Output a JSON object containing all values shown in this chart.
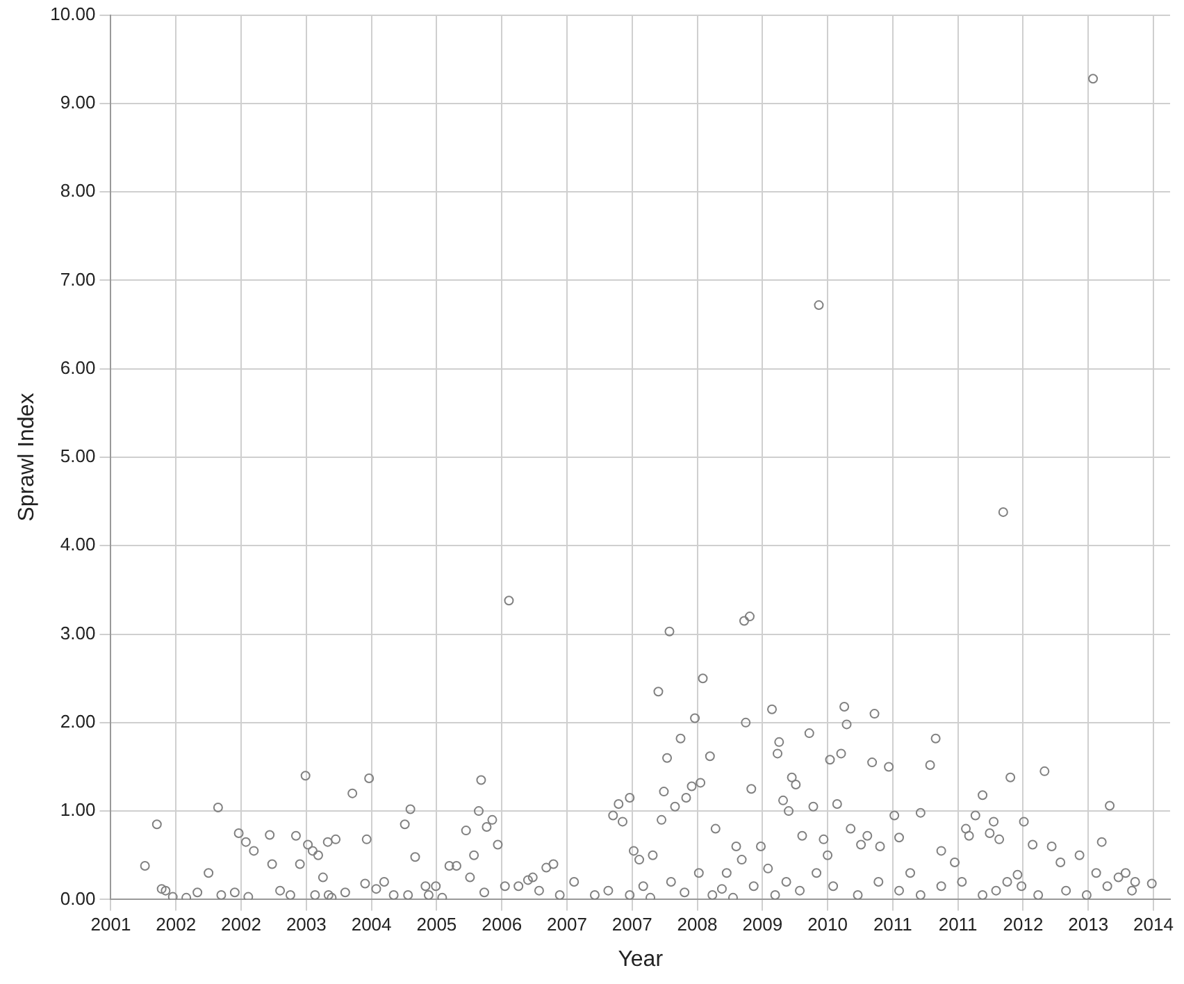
{
  "chart_data": {
    "type": "scatter",
    "xlabel": "Year",
    "ylabel": "Sprawl Index",
    "xlim": [
      2000.8,
      2014.13
    ],
    "xticks": [
      {
        "value": 2000.8,
        "label": "2001"
      },
      {
        "value": 2001.62,
        "label": "2002"
      },
      {
        "value": 2002.44,
        "label": "2002"
      },
      {
        "value": 2003.26,
        "label": "2003"
      },
      {
        "value": 2004.08,
        "label": "2004"
      },
      {
        "value": 2004.9,
        "label": "2005"
      },
      {
        "value": 2005.72,
        "label": "2006"
      },
      {
        "value": 2006.54,
        "label": "2007"
      },
      {
        "value": 2007.36,
        "label": "2007"
      },
      {
        "value": 2008.18,
        "label": "2008"
      },
      {
        "value": 2009.0,
        "label": "2009"
      },
      {
        "value": 2009.82,
        "label": "2010"
      },
      {
        "value": 2010.64,
        "label": "2011"
      },
      {
        "value": 2011.46,
        "label": "2011"
      },
      {
        "value": 2012.28,
        "label": "2012"
      },
      {
        "value": 2013.1,
        "label": "2013"
      },
      {
        "value": 2013.92,
        "label": "2014"
      }
    ],
    "ylim": [
      0,
      10
    ],
    "yticks": [
      {
        "value": 0,
        "label": "0.00"
      },
      {
        "value": 1,
        "label": "1.00"
      },
      {
        "value": 2,
        "label": "2.00"
      },
      {
        "value": 3,
        "label": "3.00"
      },
      {
        "value": 4,
        "label": "4.00"
      },
      {
        "value": 5,
        "label": "5.00"
      },
      {
        "value": 6,
        "label": "6.00"
      },
      {
        "value": 7,
        "label": "7.00"
      },
      {
        "value": 8,
        "label": "8.00"
      },
      {
        "value": 9,
        "label": "9.00"
      },
      {
        "value": 10,
        "label": "10.00"
      }
    ],
    "grid": true,
    "marker": "circle",
    "x": [
      2001.23,
      2001.38,
      2001.44,
      2001.49,
      2001.58,
      2001.75,
      2001.89,
      2002.03,
      2002.15,
      2002.41,
      2002.5,
      2002.6,
      2002.36,
      2002.53,
      2002.8,
      2002.83,
      2002.93,
      2003.13,
      2003.18,
      2003.25,
      2003.28,
      2003.34,
      2003.41,
      2003.47,
      2003.53,
      2003.63,
      2003.37,
      2003.54,
      2003.84,
      2004.02,
      2004.05,
      2004.0,
      2004.14,
      2004.24,
      2004.36,
      2004.54,
      2004.5,
      2004.57,
      2004.63,
      2004.76,
      2004.89,
      2005.06,
      2005.15,
      2005.27,
      2005.37,
      2005.43,
      2005.46,
      2005.53,
      2005.6,
      2005.67,
      2005.32,
      2005.81,
      2005.76,
      2005.93,
      2006.05,
      2006.11,
      2006.28,
      2006.37,
      2006.45,
      2006.63,
      2006.89,
      2007.12,
      2007.19,
      2007.24,
      2007.33,
      2007.38,
      2007.45,
      2007.62,
      2007.69,
      2007.73,
      2007.76,
      2007.8,
      2007.83,
      2007.9,
      2007.97,
      2008.04,
      2008.11,
      2008.15,
      2008.22,
      2008.25,
      2008.34,
      2008.41,
      2008.55,
      2008.67,
      2008.74,
      2008.77,
      2008.84,
      2008.79,
      2008.86,
      2008.98,
      2009.07,
      2009.12,
      2009.19,
      2009.21,
      2009.26,
      2009.33,
      2009.37,
      2009.42,
      2009.5,
      2009.59,
      2009.64,
      2009.71,
      2009.77,
      2009.82,
      2009.85,
      2009.94,
      2010.03,
      2010.06,
      2009.99,
      2010.11,
      2010.24,
      2010.32,
      2010.38,
      2010.41,
      2010.48,
      2010.59,
      2010.66,
      2010.72,
      2010.86,
      2010.99,
      2011.11,
      2011.18,
      2011.25,
      2011.42,
      2011.56,
      2011.6,
      2011.68,
      2011.77,
      2011.86,
      2011.91,
      2011.98,
      2012.03,
      2012.08,
      2012.12,
      2012.21,
      2012.29,
      2012.4,
      2012.55,
      2012.64,
      2012.75,
      2012.99,
      2013.16,
      2013.2,
      2013.27,
      2013.37,
      2013.48,
      2013.57,
      2013.69,
      2013.9,
      2004.8,
      2004.97,
      2005.5,
      2006.19,
      2007.06,
      2007.33,
      2007.5,
      2007.59,
      2007.85,
      2008.02,
      2008.2,
      2008.37,
      2008.49,
      2008.63,
      2008.89,
      2009.16,
      2009.3,
      2009.47,
      2009.68,
      2009.89,
      2010.2,
      2010.46,
      2010.72,
      2010.99,
      2011.25,
      2011.51,
      2011.77,
      2011.94,
      2012.26,
      2012.47,
      2012.82,
      2013.08,
      2013.34,
      2013.65,
      2003.06,
      2003.75,
      2003.58,
      2002.19
    ],
    "values": [
      0.38,
      0.85,
      0.12,
      0.1,
      0.03,
      0.02,
      0.08,
      0.3,
      1.04,
      0.75,
      0.65,
      0.55,
      0.08,
      0.03,
      0.73,
      0.4,
      0.1,
      0.72,
      0.4,
      1.4,
      0.62,
      0.55,
      0.5,
      0.25,
      0.65,
      0.68,
      0.05,
      0.05,
      1.2,
      0.68,
      1.37,
      0.18,
      0.12,
      0.2,
      0.05,
      0.05,
      0.85,
      1.02,
      0.48,
      0.15,
      0.15,
      0.38,
      0.38,
      0.78,
      0.5,
      1.0,
      1.35,
      0.82,
      0.9,
      0.62,
      0.25,
      3.38,
      0.15,
      0.15,
      0.22,
      0.25,
      0.36,
      0.4,
      0.05,
      0.2,
      0.05,
      0.95,
      1.08,
      0.88,
      1.15,
      0.55,
      0.45,
      0.5,
      2.35,
      0.9,
      1.22,
      1.6,
      3.03,
      1.05,
      1.82,
      1.15,
      1.28,
      2.05,
      1.32,
      2.5,
      1.62,
      0.8,
      0.3,
      0.6,
      0.45,
      3.15,
      3.2,
      2.0,
      1.25,
      0.6,
      0.35,
      2.15,
      1.65,
      1.78,
      1.12,
      1.0,
      1.38,
      1.3,
      0.72,
      1.88,
      1.05,
      6.72,
      0.68,
      0.5,
      1.58,
      1.08,
      2.18,
      1.98,
      1.65,
      0.8,
      0.62,
      0.72,
      1.55,
      2.1,
      0.6,
      1.5,
      0.95,
      0.7,
      0.3,
      0.98,
      1.52,
      1.82,
      0.55,
      0.42,
      0.8,
      0.72,
      0.95,
      1.18,
      0.75,
      0.88,
      0.68,
      4.38,
      0.2,
      1.38,
      0.28,
      0.88,
      0.62,
      1.45,
      0.6,
      0.42,
      0.5,
      9.28,
      0.3,
      0.65,
      1.06,
      0.25,
      0.3,
      0.2,
      0.18,
      0.05,
      0.02,
      0.08,
      0.1,
      0.1,
      0.05,
      0.15,
      0.02,
      0.2,
      0.08,
      0.3,
      0.05,
      0.12,
      0.02,
      0.15,
      0.05,
      0.2,
      0.1,
      0.3,
      0.15,
      0.05,
      0.2,
      0.1,
      0.05,
      0.15,
      0.2,
      0.05,
      0.1,
      0.15,
      0.05,
      0.1,
      0.05,
      0.15,
      0.1,
      0.05,
      0.08,
      0.02,
      0.05
    ],
    "color": "#808080"
  }
}
